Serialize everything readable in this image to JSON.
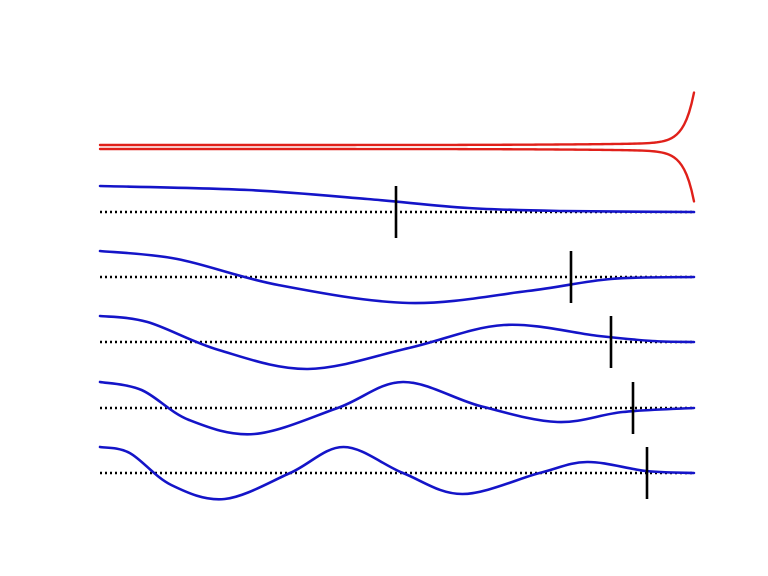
{
  "diagram": {
    "colors": {
      "background": "#ffffff",
      "potential": "#e0201a",
      "wave": "#1414c8",
      "axis": "#000000",
      "marker": "#000000"
    },
    "modes": [
      {
        "index": 0
      },
      {
        "index": 1
      },
      {
        "index": 2
      },
      {
        "index": 3
      },
      {
        "index": 4
      }
    ]
  }
}
